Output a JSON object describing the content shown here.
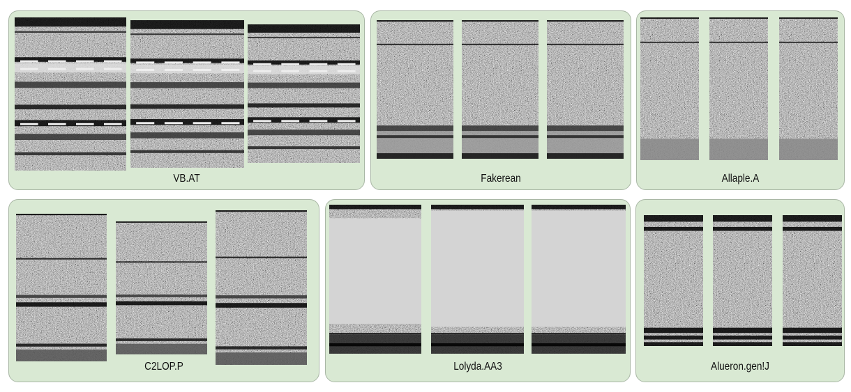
{
  "figure": {
    "families": [
      {
        "label": "VB.AT",
        "samples": 3
      },
      {
        "label": "Fakerean",
        "samples": 3
      },
      {
        "label": "Allaple.A",
        "samples": 3
      },
      {
        "label": "C2LOP.P",
        "samples": 3
      },
      {
        "label": "Lolyda.AA3",
        "samples": 3
      },
      {
        "label": "Alueron.gen!J",
        "samples": 3
      }
    ],
    "colors": {
      "panel_background": "#d9e9d3",
      "panel_border": "#a9b7a5",
      "lolyda_fill": "#d4d4d4"
    }
  }
}
